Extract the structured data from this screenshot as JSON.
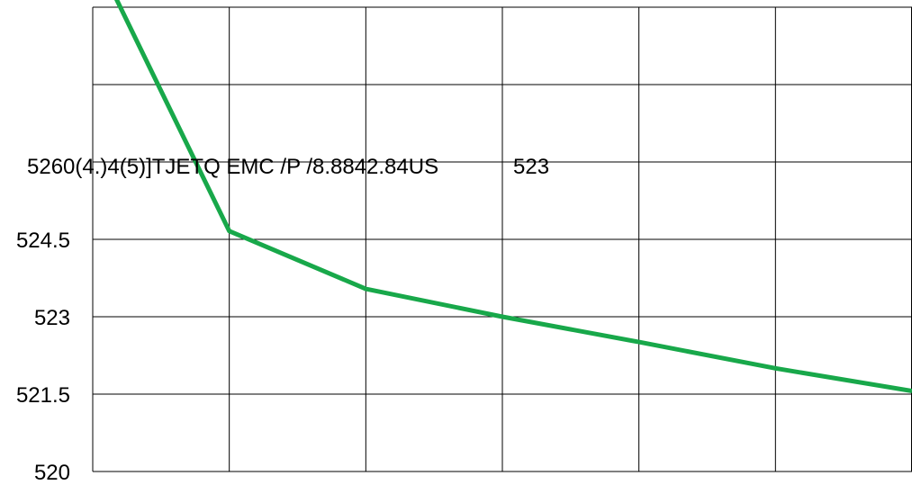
{
  "chart_data": {
    "type": "line",
    "title": "",
    "xlabel": "",
    "ylabel": "",
    "x": [
      0,
      1,
      2,
      3,
      4,
      5,
      6
    ],
    "series": [
      {
        "color": "#18a84a",
        "values": [
          530.1,
          524.66,
          523.54,
          523.0,
          522.51,
          522.0,
          521.56
        ]
      }
    ],
    "ylim": [
      520,
      529
    ],
    "yticks": [
      520,
      521.5,
      523,
      524.5
    ],
    "ytick_labels": [
      "520",
      "521.5",
      "523",
      "524.5"
    ],
    "overlapping_text": [
      "5260(4.)4(5)]TJETQ EMC  /P   /8.8842.84US",
      "523"
    ],
    "grid": true,
    "legend": "none"
  }
}
